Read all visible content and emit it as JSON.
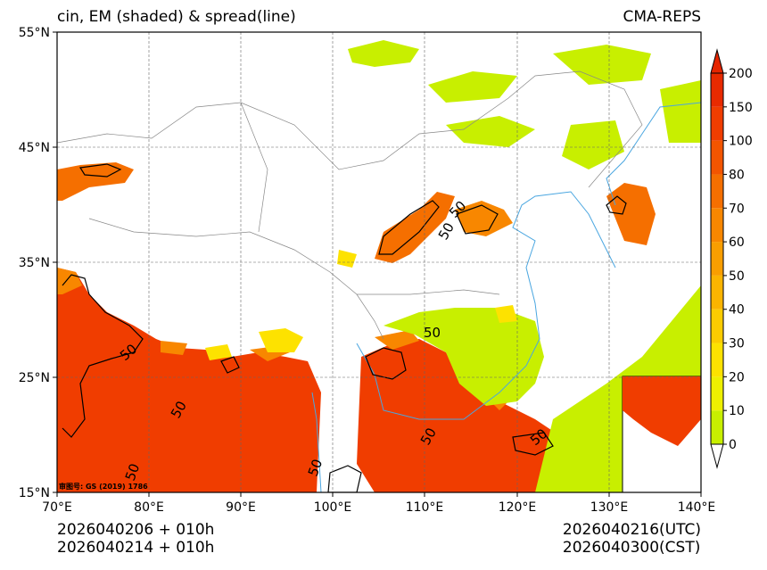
{
  "header": {
    "left_title": "cin, EM (shaded) & spread(line)",
    "right_title": "CMA-REPS"
  },
  "map": {
    "lon_range": [
      70,
      140
    ],
    "lat_range": [
      15,
      55
    ],
    "lat_ticks": [
      "55°N",
      "45°N",
      "35°N",
      "25°N",
      "15°N"
    ],
    "lon_ticks": [
      "70°E",
      "80°E",
      "90°E",
      "100°E",
      "110°E",
      "120°E",
      "130°E",
      "140°E"
    ],
    "gs_label": "审图号: GS (2019) 1786",
    "contour_label": "50"
  },
  "colorbar": {
    "labels": [
      "0",
      "10",
      "20",
      "30",
      "40",
      "50",
      "60",
      "70",
      "80",
      "100",
      "150",
      "200"
    ],
    "colors": [
      "#c8ef00",
      "#eef000",
      "#fde200",
      "#fccc00",
      "#fbb400",
      "#f99e00",
      "#f88700",
      "#f56f00",
      "#f35500",
      "#f03d00",
      "#e82a00"
    ],
    "under_color": "#ffffff",
    "over_color": "#e52500"
  },
  "footer": {
    "init_utc": "2026040206  +  010h",
    "init_cst": "2026040214  +  010h",
    "valid_utc": "2026040216(UTC)",
    "valid_cst": "2026040300(CST)"
  }
}
